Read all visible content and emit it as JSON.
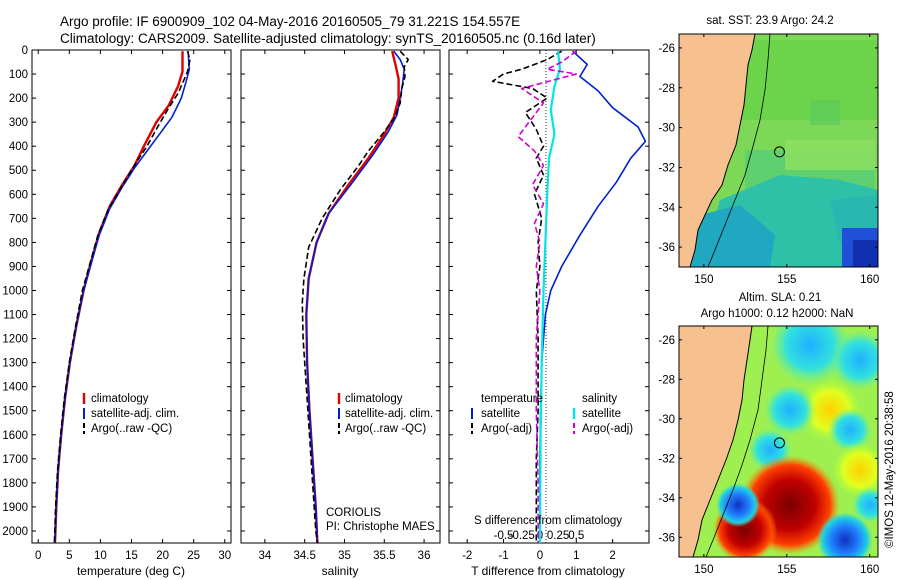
{
  "header": {
    "line1": "Argo profile: IF 6900909_102 04-May-2016 20160505_79 31.221S 154.557E",
    "line2": "Climatology: CARS2009. Satellite-adjusted climatology: synTS_20160505.nc (0.16d later)"
  },
  "colors": {
    "climatology": "#e00000",
    "satellite": "#0020d0",
    "argo": "#000000",
    "sal_satellite": "#00e5e5",
    "sal_argo": "#d000d0",
    "land": "#f7c08f"
  },
  "chart_data": [
    {
      "type": "line",
      "id": "temperature",
      "xlabel": "temperature (deg C)",
      "xlim": [
        -1,
        31
      ],
      "ylim": [
        0,
        2050
      ],
      "xticks": [
        0,
        5,
        10,
        15,
        20,
        25,
        30
      ],
      "yticks": [
        0,
        100,
        200,
        300,
        400,
        500,
        600,
        700,
        800,
        900,
        1000,
        1100,
        1200,
        1300,
        1400,
        1500,
        1600,
        1700,
        1800,
        1900,
        2000
      ],
      "legend": [
        "climatology",
        "satellite-adj. clim.",
        "Argo(..raw -QC)"
      ],
      "series": [
        {
          "name": "climatology",
          "style": "solid",
          "color": "#e00000",
          "width": 2.4,
          "points": [
            [
              23.2,
              5
            ],
            [
              23.2,
              90
            ],
            [
              22.5,
              150
            ],
            [
              21,
              230
            ],
            [
              19,
              300
            ],
            [
              17,
              400
            ],
            [
              15.5,
              480
            ],
            [
              13.5,
              560
            ],
            [
              11.5,
              650
            ],
            [
              9.8,
              760
            ],
            [
              8.5,
              880
            ],
            [
              7.3,
              1000
            ],
            [
              6.1,
              1150
            ],
            [
              5.1,
              1300
            ],
            [
              4.3,
              1450
            ],
            [
              3.7,
              1600
            ],
            [
              3.2,
              1750
            ],
            [
              2.9,
              1900
            ],
            [
              2.7,
              2050
            ]
          ]
        },
        {
          "name": "satellite-adj. clim.",
          "style": "solid",
          "color": "#0020d0",
          "width": 1.6,
          "points": [
            [
              24.1,
              5
            ],
            [
              24.3,
              80
            ],
            [
              23.8,
              130
            ],
            [
              23,
              200
            ],
            [
              21.5,
              280
            ],
            [
              19.5,
              350
            ],
            [
              17.5,
              420
            ],
            [
              15.5,
              490
            ],
            [
              13.5,
              570
            ],
            [
              11.5,
              660
            ],
            [
              9.8,
              770
            ],
            [
              8.5,
              890
            ],
            [
              7.3,
              1000
            ],
            [
              6.1,
              1150
            ],
            [
              5.1,
              1300
            ],
            [
              4.3,
              1450
            ],
            [
              3.7,
              1600
            ],
            [
              3.2,
              1750
            ],
            [
              2.9,
              1900
            ],
            [
              2.7,
              2050
            ]
          ]
        },
        {
          "name": "Argo(..raw -QC)",
          "style": "dashed",
          "color": "#000000",
          "width": 1.6,
          "points": [
            [
              24.0,
              5
            ],
            [
              24.4,
              40
            ],
            [
              24.0,
              90
            ],
            [
              23.5,
              120
            ],
            [
              22.5,
              180
            ],
            [
              21,
              240
            ],
            [
              19.2,
              320
            ],
            [
              17.5,
              400
            ],
            [
              15.7,
              470
            ],
            [
              13.6,
              560
            ],
            [
              11.3,
              660
            ],
            [
              9.6,
              770
            ],
            [
              8.3,
              890
            ],
            [
              7.1,
              1000
            ],
            [
              6.0,
              1150
            ],
            [
              5.0,
              1300
            ],
            [
              4.2,
              1450
            ],
            [
              3.6,
              1600
            ],
            [
              3.1,
              1750
            ],
            [
              2.8,
              1900
            ],
            [
              2.6,
              2050
            ]
          ]
        }
      ]
    },
    {
      "type": "line",
      "id": "salinity",
      "xlabel": "salinity",
      "xlim": [
        33.7,
        36.2
      ],
      "ylim": [
        0,
        2050
      ],
      "xticks": [
        34,
        34.5,
        35,
        35.5,
        36
      ],
      "legend": [
        "climatology",
        "satellite-adj. clim.",
        "Argo(..raw -QC)"
      ],
      "annotation": [
        "CORIOLIS",
        "PI: Christophe MAES"
      ],
      "series": [
        {
          "name": "climatology",
          "style": "solid",
          "color": "#e00000",
          "width": 2.4,
          "points": [
            [
              35.6,
              5
            ],
            [
              35.64,
              60
            ],
            [
              35.68,
              120
            ],
            [
              35.68,
              200
            ],
            [
              35.62,
              280
            ],
            [
              35.5,
              350
            ],
            [
              35.3,
              450
            ],
            [
              35.05,
              560
            ],
            [
              34.8,
              680
            ],
            [
              34.65,
              800
            ],
            [
              34.55,
              950
            ],
            [
              34.52,
              1100
            ],
            [
              34.53,
              1300
            ],
            [
              34.56,
              1500
            ],
            [
              34.6,
              1700
            ],
            [
              34.64,
              1900
            ],
            [
              34.66,
              2050
            ]
          ]
        },
        {
          "name": "satellite-adj. clim.",
          "style": "solid",
          "color": "#0020d0",
          "width": 1.6,
          "points": [
            [
              35.62,
              5
            ],
            [
              35.7,
              40
            ],
            [
              35.75,
              80
            ],
            [
              35.73,
              140
            ],
            [
              35.7,
              200
            ],
            [
              35.66,
              270
            ],
            [
              35.55,
              340
            ],
            [
              35.35,
              440
            ],
            [
              35.08,
              560
            ],
            [
              34.8,
              680
            ],
            [
              34.65,
              800
            ],
            [
              34.55,
              950
            ],
            [
              34.52,
              1100
            ],
            [
              34.53,
              1300
            ],
            [
              34.56,
              1500
            ],
            [
              34.6,
              1700
            ],
            [
              34.64,
              1900
            ],
            [
              34.66,
              2050
            ]
          ]
        },
        {
          "name": "Argo(..raw -QC)",
          "style": "dashed",
          "color": "#000000",
          "width": 1.6,
          "points": [
            [
              35.7,
              5
            ],
            [
              35.8,
              40
            ],
            [
              35.75,
              70
            ],
            [
              35.76,
              110
            ],
            [
              35.72,
              160
            ],
            [
              35.7,
              220
            ],
            [
              35.63,
              280
            ],
            [
              35.5,
              340
            ],
            [
              35.3,
              420
            ],
            [
              35.18,
              480
            ],
            [
              34.95,
              580
            ],
            [
              34.72,
              700
            ],
            [
              34.55,
              820
            ],
            [
              34.49,
              950
            ],
            [
              34.47,
              1050
            ],
            [
              34.48,
              1200
            ],
            [
              34.52,
              1400
            ],
            [
              34.56,
              1600
            ],
            [
              34.6,
              1800
            ],
            [
              34.64,
              2000
            ],
            [
              34.66,
              2050
            ]
          ]
        }
      ]
    },
    {
      "type": "line",
      "id": "difference",
      "xlabel": "T difference from climatology",
      "xlabel2": "S difference from climatology",
      "xlim": [
        -2.5,
        3
      ],
      "ylim": [
        0,
        2050
      ],
      "xticks": [
        -2,
        -1,
        0,
        1,
        2
      ],
      "xtick_labels": [
        "-2",
        "-1",
        "0",
        "1",
        "2"
      ],
      "xticks2": [
        -1,
        -0.5,
        0,
        0.5,
        1
      ],
      "xtick2_labels": [
        "-0.5",
        "-0.25",
        "0",
        "0.25",
        "0.5"
      ],
      "legend_temperature_title": "temperature",
      "legend_temperature": [
        "satellite",
        "Argo(-adj)"
      ],
      "legend_salinity_title": "salinity",
      "legend_salinity": [
        "satellite",
        "Argo(-adj)"
      ],
      "series": [
        {
          "name": "T satellite",
          "style": "solid",
          "color": "#0020d0",
          "width": 1.6,
          "points": [
            [
              0.9,
              5
            ],
            [
              1.3,
              60
            ],
            [
              1.1,
              110
            ],
            [
              1.6,
              170
            ],
            [
              2.0,
              240
            ],
            [
              2.7,
              320
            ],
            [
              2.9,
              380
            ],
            [
              2.5,
              450
            ],
            [
              2.1,
              550
            ],
            [
              1.6,
              650
            ],
            [
              1.1,
              770
            ],
            [
              0.6,
              900
            ],
            [
              0.3,
              1000
            ],
            [
              0.15,
              1100
            ],
            [
              0.05,
              1300
            ],
            [
              0.02,
              1500
            ],
            [
              0.0,
              1700
            ],
            [
              0.0,
              2050
            ]
          ]
        },
        {
          "name": "T Argo(-adj)",
          "style": "dashed",
          "color": "#000000",
          "width": 1.6,
          "points": [
            [
              0.6,
              5
            ],
            [
              0.2,
              40
            ],
            [
              -0.5,
              80
            ],
            [
              -1.0,
              100
            ],
            [
              -1.3,
              130
            ],
            [
              -0.2,
              160
            ],
            [
              0.2,
              200
            ],
            [
              -0.4,
              260
            ],
            [
              -0.1,
              330
            ],
            [
              0.1,
              400
            ],
            [
              -0.1,
              450
            ],
            [
              0.1,
              520
            ],
            [
              -0.15,
              600
            ],
            [
              0.05,
              700
            ],
            [
              -0.05,
              800
            ],
            [
              0.0,
              900
            ],
            [
              -0.1,
              1000
            ],
            [
              -0.05,
              1200
            ],
            [
              -0.05,
              1500
            ],
            [
              -0.1,
              1700
            ],
            [
              -0.1,
              2050
            ]
          ]
        },
        {
          "name": "S satellite",
          "style": "solid",
          "color": "#00e5e5",
          "width": 2.2,
          "points": [
            [
              0.5,
              5
            ],
            [
              0.55,
              80
            ],
            [
              0.4,
              150
            ],
            [
              0.3,
              250
            ],
            [
              0.4,
              350
            ],
            [
              0.25,
              450
            ],
            [
              0.2,
              600
            ],
            [
              0.15,
              800
            ],
            [
              0.1,
              1000
            ],
            [
              0.05,
              1300
            ],
            [
              0.02,
              1600
            ],
            [
              0.0,
              2050
            ]
          ]
        },
        {
          "name": "S Argo(-adj)",
          "style": "dashed",
          "color": "#d000d0",
          "width": 1.6,
          "points": [
            [
              1.0,
              5
            ],
            [
              0.6,
              50
            ],
            [
              0.2,
              80
            ],
            [
              1.0,
              100
            ],
            [
              -0.5,
              160
            ],
            [
              0.1,
              220
            ],
            [
              -0.3,
              300
            ],
            [
              -0.6,
              360
            ],
            [
              -0.15,
              420
            ],
            [
              0.1,
              480
            ],
            [
              -0.2,
              560
            ],
            [
              0.1,
              640
            ],
            [
              -0.15,
              720
            ],
            [
              0.0,
              800
            ],
            [
              -0.1,
              900
            ],
            [
              0.0,
              1000
            ],
            [
              -0.1,
              1200
            ],
            [
              -0.1,
              1500
            ],
            [
              -0.05,
              1800
            ],
            [
              -0.05,
              2050
            ]
          ]
        }
      ]
    },
    {
      "type": "heatmap",
      "id": "sst_map",
      "title": "sat. SST: 23.9 Argo: 24.2",
      "xlim": [
        148.5,
        160.5
      ],
      "ylim": [
        -37,
        -25.3
      ],
      "xticks": [
        150,
        155,
        160
      ],
      "yticks": [
        -26,
        -28,
        -30,
        -32,
        -34,
        -36
      ],
      "argo_location": [
        154.557,
        -31.221
      ]
    },
    {
      "type": "heatmap",
      "id": "sla_map",
      "title": "Altim. SLA: 0.21",
      "subtitle": "Argo h1000: 0.12 h2000: NaN",
      "xlim": [
        148.5,
        160.5
      ],
      "ylim": [
        -37,
        -25.3
      ],
      "xticks": [
        150,
        155,
        160
      ],
      "yticks": [
        -26,
        -28,
        -30,
        -32,
        -34,
        -36
      ],
      "argo_location": [
        154.557,
        -31.221
      ]
    }
  ],
  "footer": {
    "stamp": "©IMOS 12-May-2016 20:38:58"
  }
}
